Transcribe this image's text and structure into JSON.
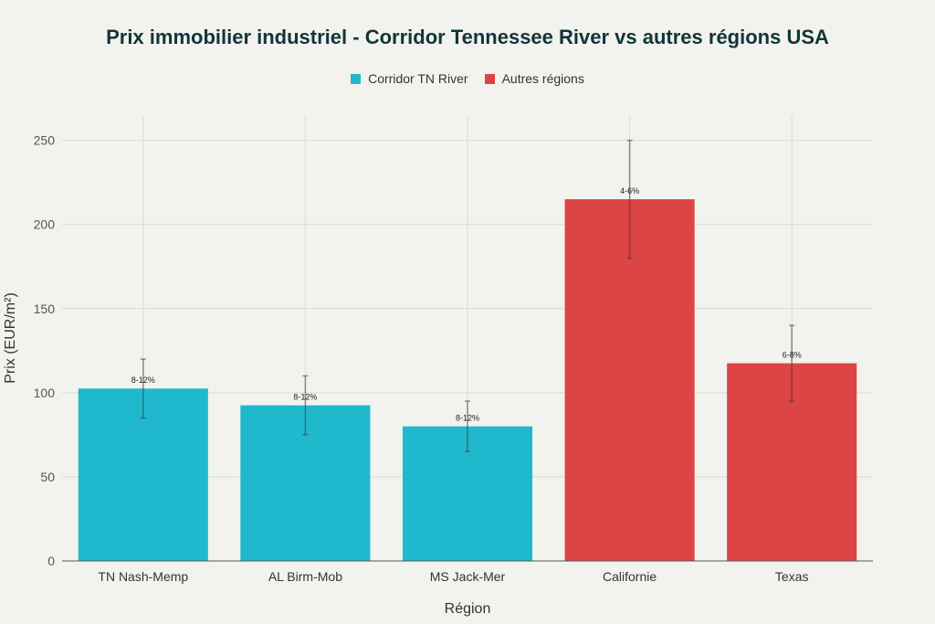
{
  "chart_data": {
    "type": "bar",
    "title": "Prix immobilier industriel - Corridor Tennessee River vs autres régions USA",
    "xlabel": "Région",
    "ylabel": "Prix (EUR/m²)",
    "ylim": [
      0,
      265
    ],
    "yticks": [
      0,
      50,
      100,
      150,
      200,
      250
    ],
    "grid": true,
    "legend_position": "top-center",
    "categories": [
      "TN Nash-Memp",
      "AL Birm-Mob",
      "MS Jack-Mer",
      "Californie",
      "Texas"
    ],
    "values": [
      102.5,
      92.5,
      80,
      215,
      117.5
    ],
    "error_low": [
      85,
      75,
      65,
      180,
      95
    ],
    "error_high": [
      120,
      110,
      95,
      250,
      140
    ],
    "labels": [
      "8-12%",
      "8-12%",
      "8-12%",
      "4-6%",
      "6-8%"
    ],
    "groups": [
      "Corridor TN River",
      "Corridor TN River",
      "Corridor TN River",
      "Autres régions",
      "Autres régions"
    ],
    "series": [
      {
        "name": "Corridor TN River",
        "color": "#20b8cd"
      },
      {
        "name": "Autres régions",
        "color": "#dc4446"
      }
    ]
  }
}
